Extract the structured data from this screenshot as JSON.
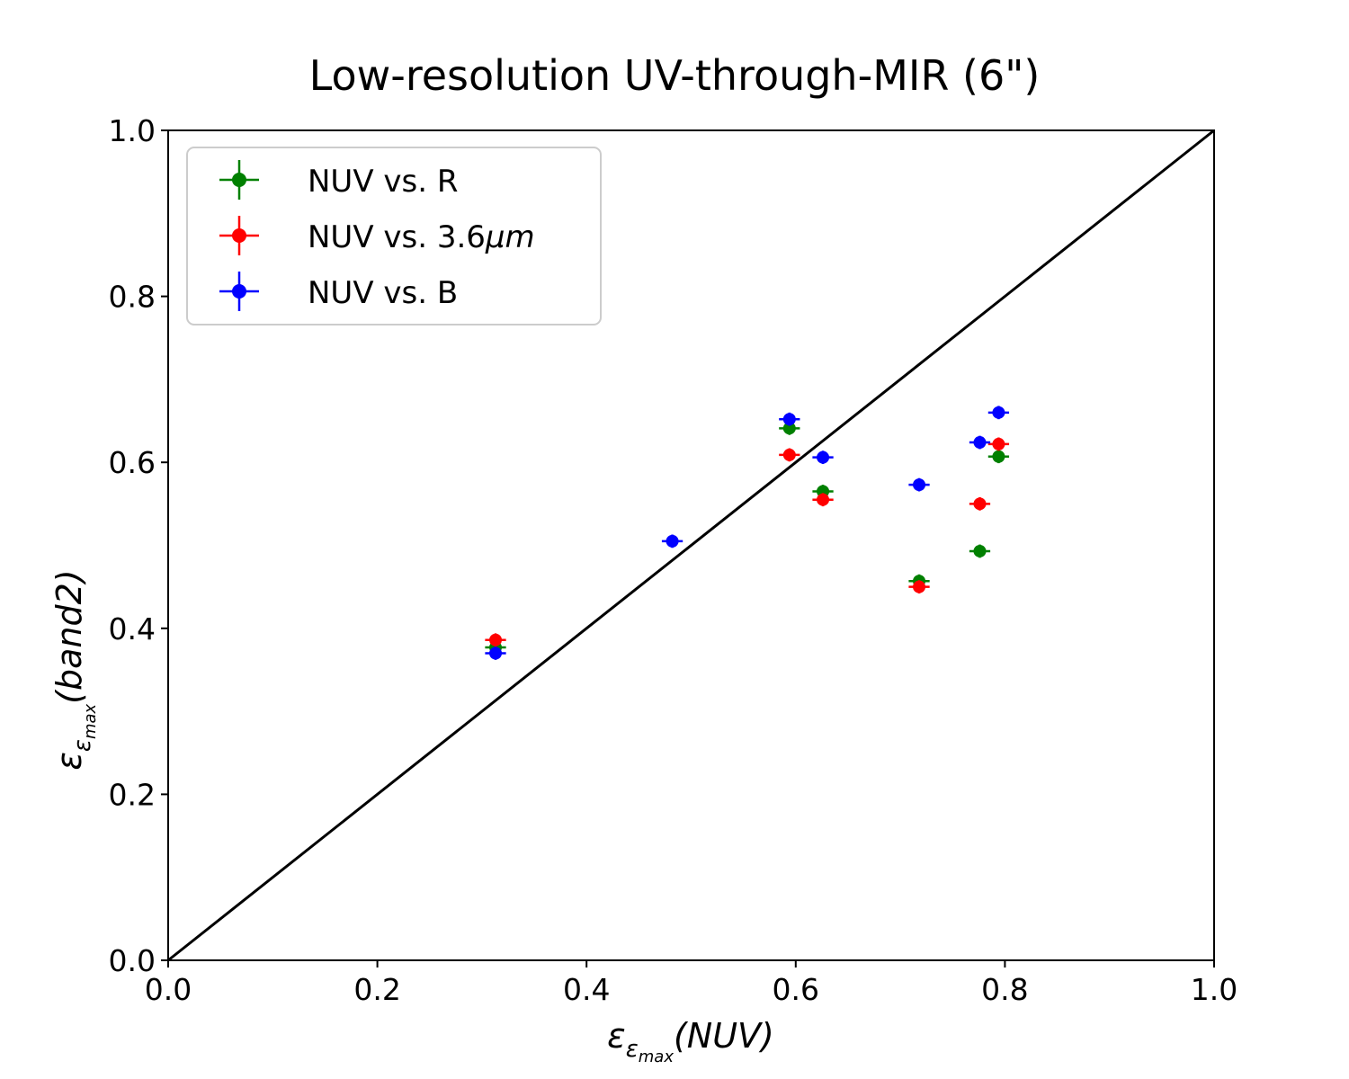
{
  "chart_data": {
    "type": "scatter",
    "title": "Low-resolution UV-through-MIR (6\")",
    "xlabel": {
      "base": "ε",
      "sub": "ε",
      "subsub": "max",
      "arg": "(NUV)"
    },
    "ylabel": {
      "base": "ε",
      "sub": "ε",
      "subsub": "max",
      "arg": "(band2)"
    },
    "xlim": [
      0.0,
      1.0
    ],
    "ylim": [
      0.0,
      1.0
    ],
    "xticks": [
      "0.0",
      "0.2",
      "0.4",
      "0.6",
      "0.8",
      "1.0"
    ],
    "yticks": [
      "0.0",
      "0.2",
      "0.4",
      "0.6",
      "0.8",
      "1.0"
    ],
    "grid": false,
    "legend_position": "top-left",
    "reference_line": {
      "x": [
        0,
        1
      ],
      "y": [
        0,
        1
      ],
      "color": "#000000"
    },
    "series": [
      {
        "name": "NUV vs. R",
        "legend_main": "NUV vs. R",
        "legend_italic": "",
        "color": "#008000",
        "x": [
          0.313,
          0.594,
          0.626,
          0.718,
          0.776,
          0.794
        ],
        "y": [
          0.377,
          0.641,
          0.565,
          0.457,
          0.493,
          0.607
        ],
        "xerr": 0.01,
        "yerr": 0.008
      },
      {
        "name": "NUV vs. 3.6μm",
        "legend_main": "NUV vs. 3.6",
        "legend_italic": "μm",
        "color": "#ff0000",
        "x": [
          0.313,
          0.594,
          0.626,
          0.718,
          0.776,
          0.794
        ],
        "y": [
          0.386,
          0.609,
          0.555,
          0.45,
          0.55,
          0.622
        ],
        "xerr": 0.01,
        "yerr": 0.008
      },
      {
        "name": "NUV vs. B",
        "legend_main": "NUV vs. B",
        "legend_italic": "",
        "color": "#0000ff",
        "x": [
          0.313,
          0.482,
          0.594,
          0.626,
          0.718,
          0.776,
          0.794
        ],
        "y": [
          0.37,
          0.505,
          0.652,
          0.606,
          0.573,
          0.624,
          0.66
        ],
        "xerr": 0.01,
        "yerr": 0.008
      }
    ]
  }
}
